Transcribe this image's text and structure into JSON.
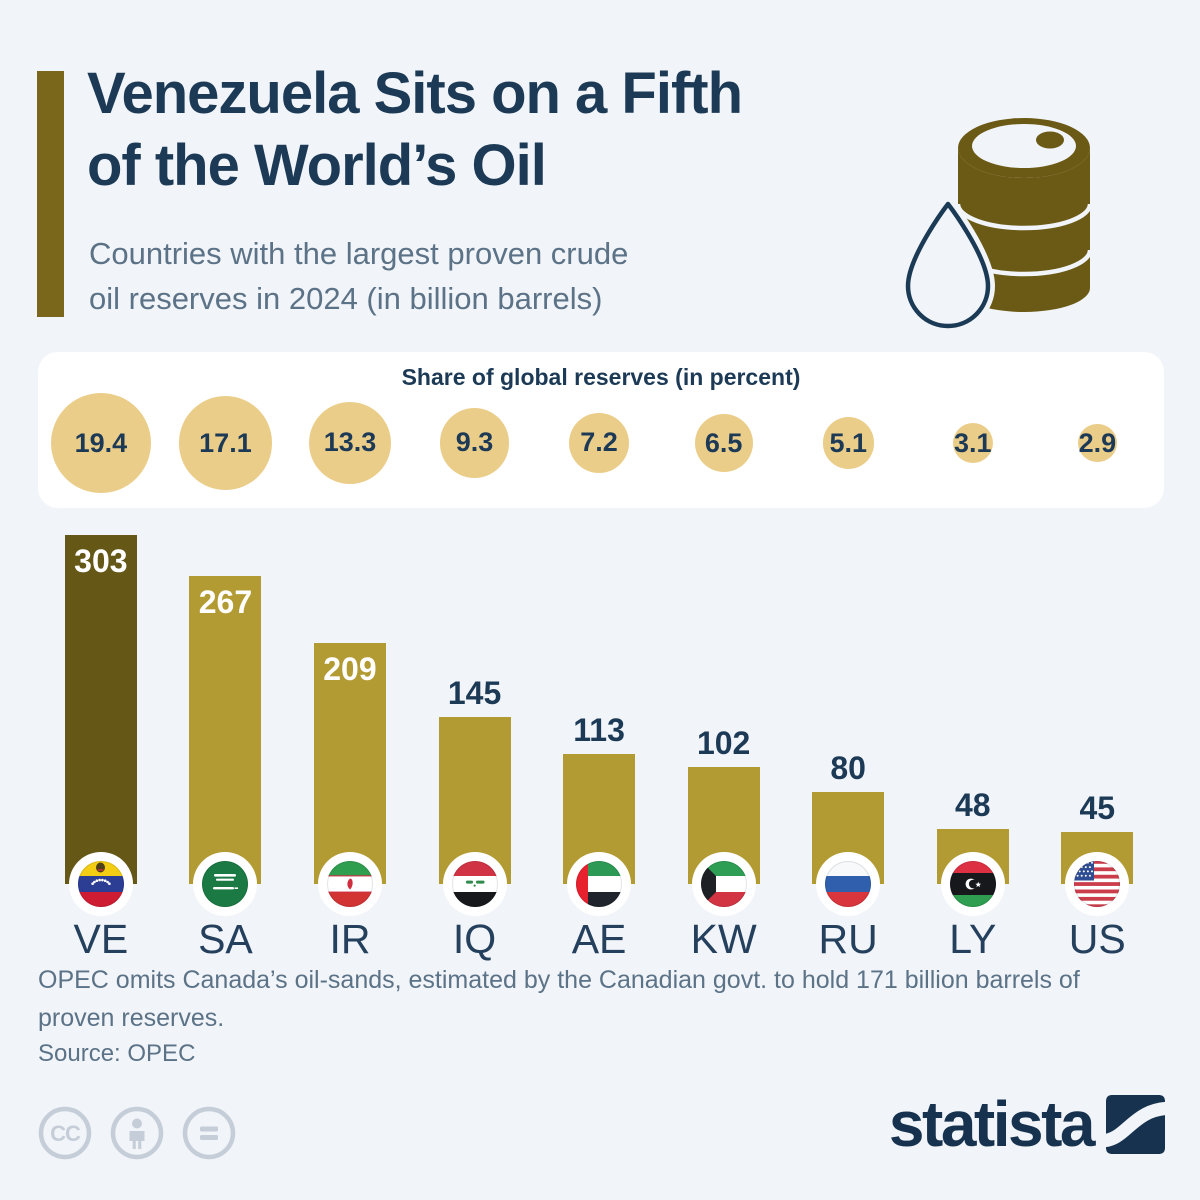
{
  "colors": {
    "background": "#f1f4f8",
    "navy": "#1c3a56",
    "muted": "#5b7287",
    "gold_bar": "#b39b34",
    "highlight_bar": "#655716",
    "accent_bar": "#7a671c",
    "bubble": "#ebcd8a",
    "panel": "#ffffff",
    "license_gray": "#c5ced8"
  },
  "header": {
    "title_line1": "Venezuela Sits on a Fifth",
    "title_line2": "of the World’s Oil",
    "subtitle_line1": "Countries with the largest proven crude",
    "subtitle_line2": "oil reserves in 2024 (in billion barrels)",
    "icons": [
      "oil-barrel-icon",
      "oil-drop-icon"
    ]
  },
  "share_panel": {
    "title": "Share of global reserves (in percent)",
    "values": [
      "19.4",
      "17.1",
      "13.3",
      "9.3",
      "7.2",
      "6.5",
      "5.1",
      "3.1",
      "2.9"
    ]
  },
  "chart_data": {
    "type": "bar",
    "title": "Venezuela Sits on a Fifth of the World’s Oil",
    "subtitle": "Countries with the largest proven crude oil reserves in 2024 (in billion barrels)",
    "categories": [
      "VE",
      "SA",
      "IR",
      "IQ",
      "AE",
      "KW",
      "RU",
      "LY",
      "US"
    ],
    "values": [
      303,
      267,
      209,
      145,
      113,
      102,
      80,
      48,
      45
    ],
    "share_percent": [
      19.4,
      17.1,
      13.3,
      9.3,
      7.2,
      6.5,
      5.1,
      3.1,
      2.9
    ],
    "unit": "billion barrels",
    "highlight_category": "VE",
    "ylim": [
      0,
      303
    ],
    "grid": false,
    "legend": "none",
    "flag_icons": [
      "flag-venezuela-icon",
      "flag-saudi-arabia-icon",
      "flag-iran-icon",
      "flag-iraq-icon",
      "flag-uae-icon",
      "flag-kuwait-icon",
      "flag-russia-icon",
      "flag-libya-icon",
      "flag-usa-icon"
    ]
  },
  "footer": {
    "note": "OPEC omits Canada’s oil-sands, estimated by the Canadian govt. to hold 171 billion barrels of proven reserves.",
    "source": "Source: OPEC"
  },
  "branding": {
    "logo_text": "statista",
    "logo_mark": "statista-swoosh-icon",
    "license_icons": [
      "cc-icon",
      "cc-by-person-icon",
      "cc-nd-equals-icon"
    ]
  }
}
